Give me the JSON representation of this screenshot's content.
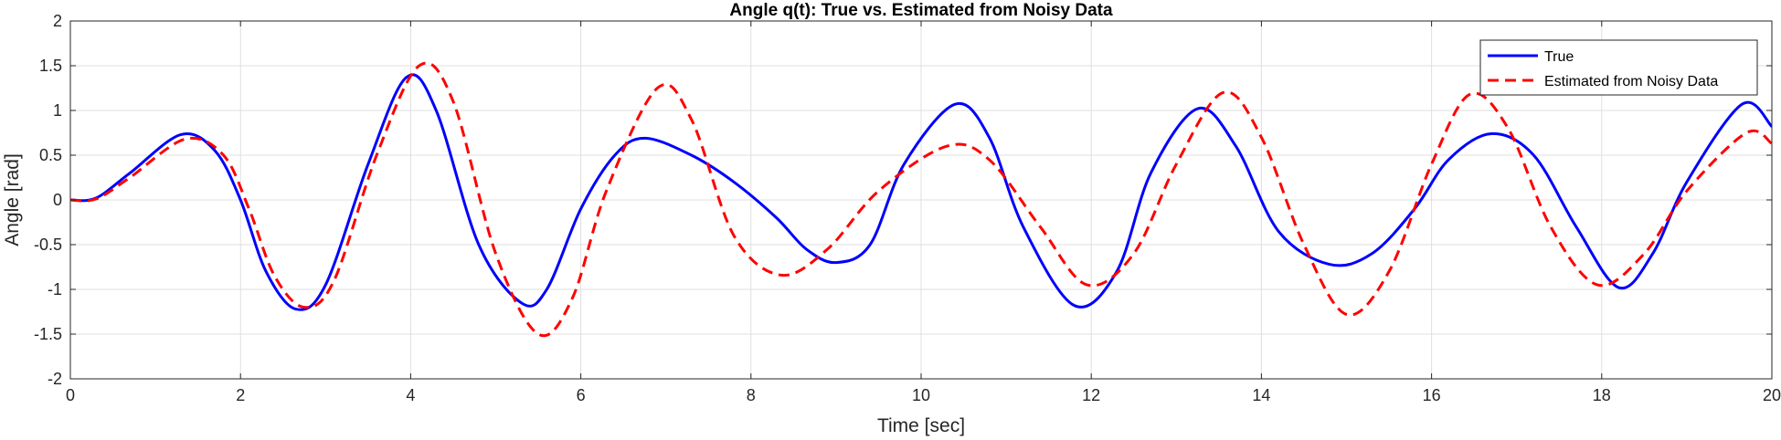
{
  "chart_data": {
    "type": "line",
    "title": "Angle q(t): True vs. Estimated from Noisy Data",
    "xlabel": "Time [sec]",
    "ylabel": "Angle [rad]",
    "xlim": [
      0,
      20
    ],
    "ylim": [
      -2,
      2
    ],
    "xticks": [
      0,
      2,
      4,
      6,
      8,
      10,
      12,
      14,
      16,
      18,
      20
    ],
    "yticks": [
      -2,
      -1.5,
      -1,
      -0.5,
      0,
      0.5,
      1,
      1.5,
      2
    ],
    "grid": true,
    "legend_position": "top-right",
    "series": [
      {
        "name": "True",
        "color": "#0000ff",
        "style": "solid",
        "points": [
          [
            0,
            0
          ],
          [
            0.3,
            0.02
          ],
          [
            0.7,
            0.3
          ],
          [
            1.3,
            0.73
          ],
          [
            1.7,
            0.55
          ],
          [
            2.0,
            0.0
          ],
          [
            2.3,
            -0.8
          ],
          [
            2.65,
            -1.22
          ],
          [
            3.0,
            -0.95
          ],
          [
            3.5,
            0.4
          ],
          [
            3.95,
            1.37
          ],
          [
            4.3,
            1.0
          ],
          [
            4.8,
            -0.5
          ],
          [
            5.3,
            -1.15
          ],
          [
            5.6,
            -1.0
          ],
          [
            6.0,
            -0.1
          ],
          [
            6.4,
            0.5
          ],
          [
            6.75,
            0.69
          ],
          [
            7.3,
            0.5
          ],
          [
            7.8,
            0.2
          ],
          [
            8.3,
            -0.2
          ],
          [
            8.65,
            -0.55
          ],
          [
            9.0,
            -0.7
          ],
          [
            9.4,
            -0.5
          ],
          [
            9.8,
            0.4
          ],
          [
            10.4,
            1.07
          ],
          [
            10.8,
            0.7
          ],
          [
            11.2,
            -0.3
          ],
          [
            11.8,
            -1.18
          ],
          [
            12.3,
            -0.8
          ],
          [
            12.7,
            0.3
          ],
          [
            13.25,
            1.02
          ],
          [
            13.7,
            0.6
          ],
          [
            14.2,
            -0.35
          ],
          [
            14.8,
            -0.72
          ],
          [
            15.3,
            -0.6
          ],
          [
            15.8,
            -0.1
          ],
          [
            16.2,
            0.45
          ],
          [
            16.7,
            0.74
          ],
          [
            17.2,
            0.5
          ],
          [
            17.7,
            -0.3
          ],
          [
            18.2,
            -0.98
          ],
          [
            18.6,
            -0.6
          ],
          [
            19.0,
            0.2
          ],
          [
            19.65,
            1.07
          ],
          [
            20.0,
            0.82
          ]
        ]
      },
      {
        "name": "Estimated from Noisy Data",
        "color": "#ff0000",
        "style": "dashed",
        "points": [
          [
            0,
            0
          ],
          [
            0.3,
            0.01
          ],
          [
            0.7,
            0.25
          ],
          [
            1.35,
            0.68
          ],
          [
            1.8,
            0.5
          ],
          [
            2.1,
            -0.1
          ],
          [
            2.4,
            -0.85
          ],
          [
            2.75,
            -1.2
          ],
          [
            3.1,
            -0.9
          ],
          [
            3.6,
            0.5
          ],
          [
            4.1,
            1.5
          ],
          [
            4.5,
            1.1
          ],
          [
            5.0,
            -0.6
          ],
          [
            5.5,
            -1.5
          ],
          [
            5.9,
            -1.1
          ],
          [
            6.3,
            0.1
          ],
          [
            6.9,
            1.25
          ],
          [
            7.3,
            0.9
          ],
          [
            7.8,
            -0.4
          ],
          [
            8.35,
            -0.84
          ],
          [
            8.9,
            -0.55
          ],
          [
            9.5,
            0.1
          ],
          [
            10.3,
            0.6
          ],
          [
            10.8,
            0.45
          ],
          [
            11.4,
            -0.3
          ],
          [
            11.95,
            -0.95
          ],
          [
            12.5,
            -0.6
          ],
          [
            13.0,
            0.4
          ],
          [
            13.55,
            1.2
          ],
          [
            14.0,
            0.7
          ],
          [
            14.5,
            -0.5
          ],
          [
            15.0,
            -1.28
          ],
          [
            15.5,
            -0.8
          ],
          [
            16.0,
            0.4
          ],
          [
            16.45,
            1.18
          ],
          [
            16.9,
            0.8
          ],
          [
            17.4,
            -0.3
          ],
          [
            17.95,
            -0.95
          ],
          [
            18.5,
            -0.6
          ],
          [
            19.0,
            0.1
          ],
          [
            19.7,
            0.75
          ],
          [
            20.0,
            0.63
          ]
        ]
      }
    ]
  }
}
